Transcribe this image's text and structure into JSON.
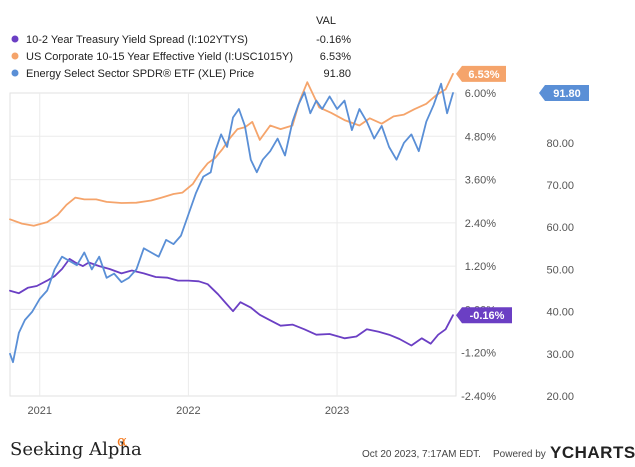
{
  "legend": {
    "header": "VAL",
    "items": [
      {
        "name": "10-2 Year Treasury Yield Spread (I:102YTYS)",
        "value": "-0.16%",
        "color": "#6b3fc4"
      },
      {
        "name": "US Corporate 10-15 Year Effective Yield (I:USC1015Y)",
        "value": "6.53%",
        "color": "#f5a46b"
      },
      {
        "name": "Energy Select Sector SPDR® ETF (XLE) Price",
        "value": "91.80",
        "color": "#5a8fd6"
      }
    ]
  },
  "footer": {
    "brand": "Seeking Alpha",
    "brand_symbol": "α",
    "timestamp": "Oct 20 2023, 7:17AM EDT.",
    "powered": "Powered by",
    "ycharts": "YCHARTS"
  },
  "chart_data": {
    "type": "line",
    "x_ticks": [
      "2021",
      "2022",
      "2023"
    ],
    "x_tick_dates": [
      2021.0,
      2022.0,
      2023.0
    ],
    "xlim": [
      2020.8,
      2023.8
    ],
    "y_left": {
      "ticks": [
        "6.00%",
        "4.80%",
        "3.60%",
        "2.40%",
        "1.20%",
        "0.00%",
        "-1.20%",
        "-2.40%"
      ],
      "tick_values": [
        6.0,
        4.8,
        3.6,
        2.4,
        1.2,
        0.0,
        -1.2,
        -2.4
      ],
      "lim": [
        -2.4,
        6.0
      ]
    },
    "y_right": {
      "ticks": [
        "80.00",
        "70.00",
        "60.00",
        "50.00",
        "40.00",
        "30.00",
        "20.00"
      ],
      "tick_values": [
        80,
        70,
        60,
        50,
        40,
        30,
        20
      ],
      "lim": [
        20,
        91.8
      ]
    },
    "grid": true,
    "series": [
      {
        "name": "10-2 Year Treasury Yield Spread (I:102YTYS)",
        "axis": "left",
        "color": "#6b3fc4",
        "last_label": "-0.16%",
        "x": [
          2020.8,
          2020.86,
          2020.92,
          2020.98,
          2021.05,
          2021.1,
          2021.15,
          2021.2,
          2021.24,
          2021.29,
          2021.33,
          2021.4,
          2021.47,
          2021.55,
          2021.62,
          2021.7,
          2021.78,
          2021.86,
          2021.93,
          2022.0,
          2022.07,
          2022.13,
          2022.2,
          2022.25,
          2022.3,
          2022.35,
          2022.42,
          2022.48,
          2022.55,
          2022.62,
          2022.7,
          2022.78,
          2022.86,
          2022.95,
          2023.05,
          2023.13,
          2023.2,
          2023.28,
          2023.35,
          2023.42,
          2023.5,
          2023.57,
          2023.63,
          2023.68,
          2023.73,
          2023.78
        ],
        "y": [
          0.52,
          0.45,
          0.6,
          0.65,
          0.8,
          0.92,
          1.12,
          1.4,
          1.3,
          1.2,
          1.3,
          1.2,
          1.12,
          1.0,
          1.08,
          1.0,
          0.9,
          0.88,
          0.8,
          0.8,
          0.78,
          0.7,
          0.42,
          0.18,
          -0.05,
          0.2,
          0.05,
          -0.15,
          -0.3,
          -0.45,
          -0.42,
          -0.55,
          -0.7,
          -0.68,
          -0.8,
          -0.75,
          -0.55,
          -0.62,
          -0.7,
          -0.82,
          -1.0,
          -0.8,
          -0.95,
          -0.7,
          -0.55,
          -0.16
        ]
      },
      {
        "name": "US Corporate 10-15 Year Effective Yield (I:USC1015Y)",
        "axis": "left",
        "color": "#f5a46b",
        "last_label": "6.53%",
        "x": [
          2020.8,
          2020.88,
          2020.96,
          2021.05,
          2021.12,
          2021.18,
          2021.24,
          2021.3,
          2021.38,
          2021.45,
          2021.55,
          2021.65,
          2021.75,
          2021.82,
          2021.9,
          2021.96,
          2022.03,
          2022.08,
          2022.13,
          2022.18,
          2022.23,
          2022.28,
          2022.33,
          2022.38,
          2022.43,
          2022.48,
          2022.55,
          2022.62,
          2022.7,
          2022.75,
          2022.8,
          2022.88,
          2022.96,
          2023.05,
          2023.15,
          2023.22,
          2023.3,
          2023.38,
          2023.45,
          2023.52,
          2023.6,
          2023.67,
          2023.73,
          2023.78
        ],
        "y": [
          2.5,
          2.38,
          2.32,
          2.42,
          2.62,
          2.9,
          3.1,
          3.05,
          3.05,
          2.98,
          2.95,
          2.96,
          3.02,
          3.1,
          3.2,
          3.24,
          3.48,
          3.8,
          4.05,
          4.2,
          4.45,
          4.75,
          5.0,
          5.05,
          5.2,
          4.7,
          5.1,
          5.0,
          5.1,
          5.8,
          6.3,
          5.6,
          5.45,
          5.25,
          5.1,
          5.3,
          5.15,
          5.35,
          5.4,
          5.55,
          5.7,
          5.95,
          6.1,
          6.53
        ]
      },
      {
        "name": "Energy Select Sector SPDR® ETF (XLE) Price",
        "axis": "right",
        "color": "#5a8fd6",
        "last_label": "91.80",
        "x": [
          2020.8,
          2020.82,
          2020.86,
          2020.9,
          2020.95,
          2021.0,
          2021.05,
          2021.1,
          2021.15,
          2021.2,
          2021.25,
          2021.3,
          2021.35,
          2021.4,
          2021.45,
          2021.5,
          2021.55,
          2021.6,
          2021.65,
          2021.7,
          2021.75,
          2021.8,
          2021.85,
          2021.9,
          2021.95,
          2022.0,
          2022.05,
          2022.1,
          2022.15,
          2022.18,
          2022.22,
          2022.26,
          2022.3,
          2022.34,
          2022.38,
          2022.42,
          2022.46,
          2022.5,
          2022.55,
          2022.6,
          2022.65,
          2022.7,
          2022.74,
          2022.78,
          2022.82,
          2022.86,
          2022.9,
          2022.95,
          2023.0,
          2023.05,
          2023.1,
          2023.15,
          2023.2,
          2023.25,
          2023.3,
          2023.35,
          2023.4,
          2023.45,
          2023.5,
          2023.55,
          2023.6,
          2023.65,
          2023.7,
          2023.74,
          2023.78
        ],
        "y": [
          30.0,
          28.0,
          35.0,
          38.0,
          40.0,
          43.0,
          45.0,
          50.0,
          53.0,
          52.0,
          51.0,
          54.0,
          50.0,
          53.0,
          48.0,
          49.0,
          47.0,
          48.0,
          50.0,
          55.0,
          54.0,
          53.0,
          57.0,
          56.0,
          58.0,
          63.0,
          68.0,
          72.0,
          73.0,
          78.0,
          82.0,
          79.0,
          86.0,
          88.0,
          84.0,
          76.0,
          73.0,
          76.0,
          78.0,
          81.0,
          77.0,
          85.0,
          89.0,
          92.0,
          87.0,
          90.0,
          88.0,
          91.0,
          88.0,
          90.0,
          83.0,
          88.0,
          85.0,
          81.0,
          84.0,
          79.0,
          76.0,
          80.0,
          82.0,
          78.0,
          85.0,
          89.0,
          94.0,
          87.0,
          91.8
        ]
      }
    ]
  }
}
